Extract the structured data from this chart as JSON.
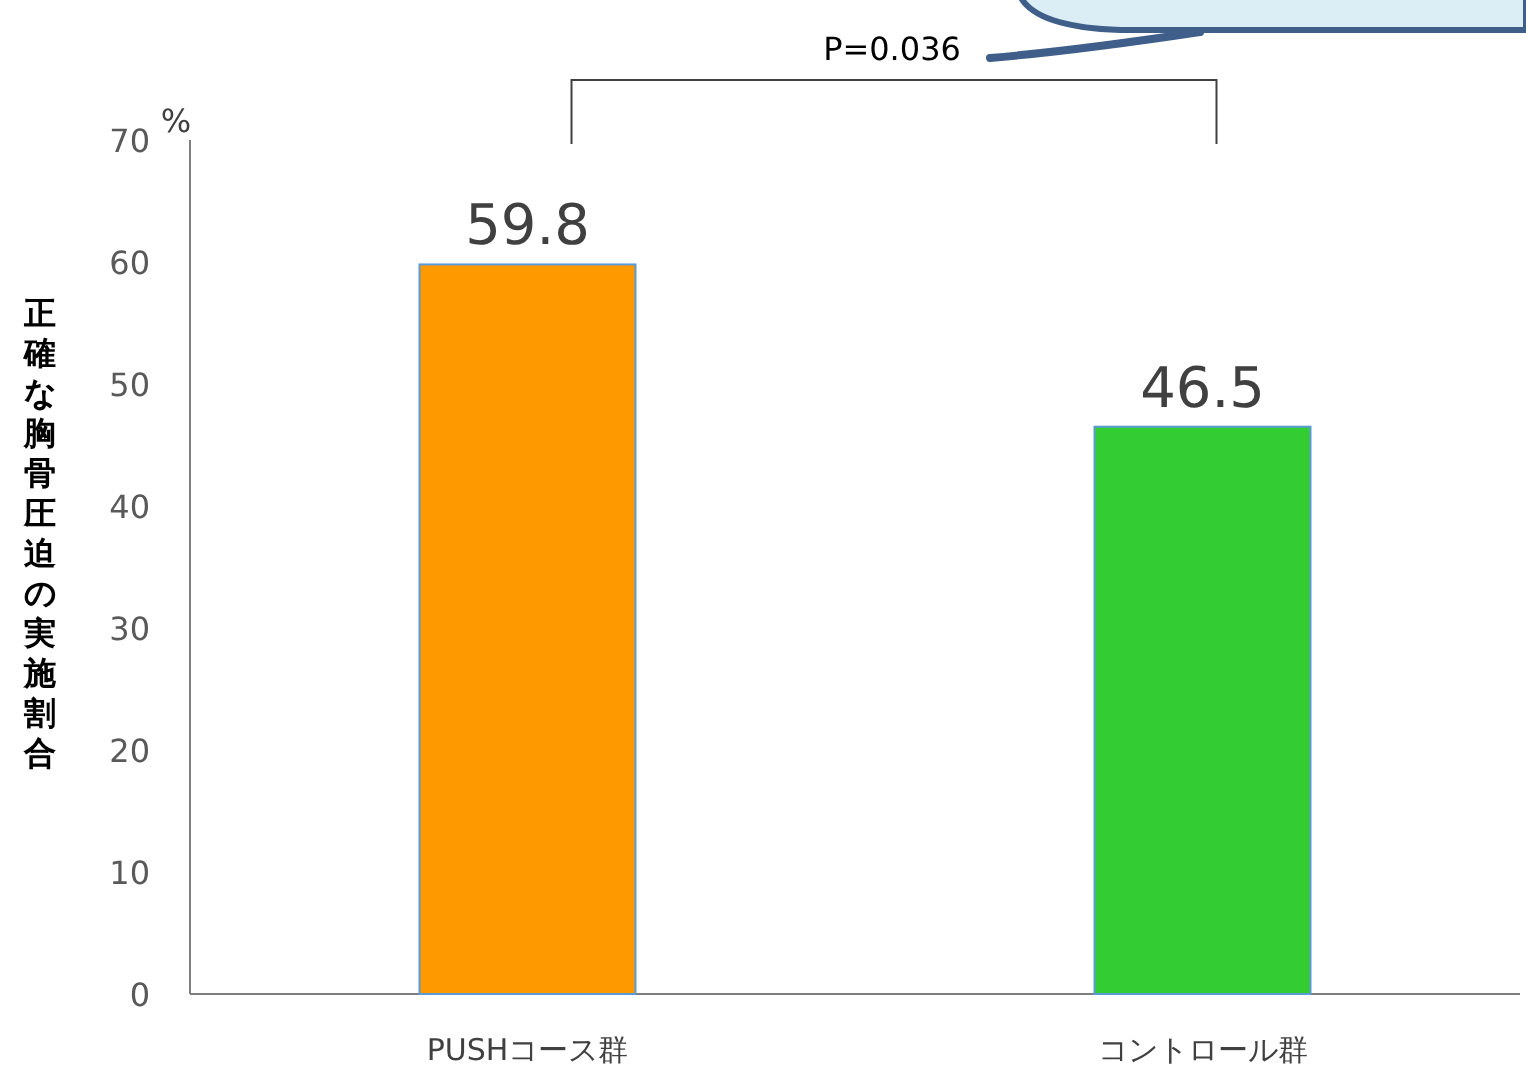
{
  "chart_data": {
    "type": "bar",
    "ylabel": "正確な胸骨圧迫の実施割合",
    "categories": [
      "PUSHコース群",
      "コントロール群"
    ],
    "values": [
      59.8,
      46.5
    ],
    "colors": [
      "#ff9900",
      "#33cc33"
    ],
    "ylim": [
      0,
      70
    ],
    "yticks": [
      0,
      10,
      20,
      30,
      40,
      50,
      60,
      70
    ],
    "grid": false,
    "data_labels": true,
    "annotations": [
      "%",
      "P=0.036"
    ]
  }
}
